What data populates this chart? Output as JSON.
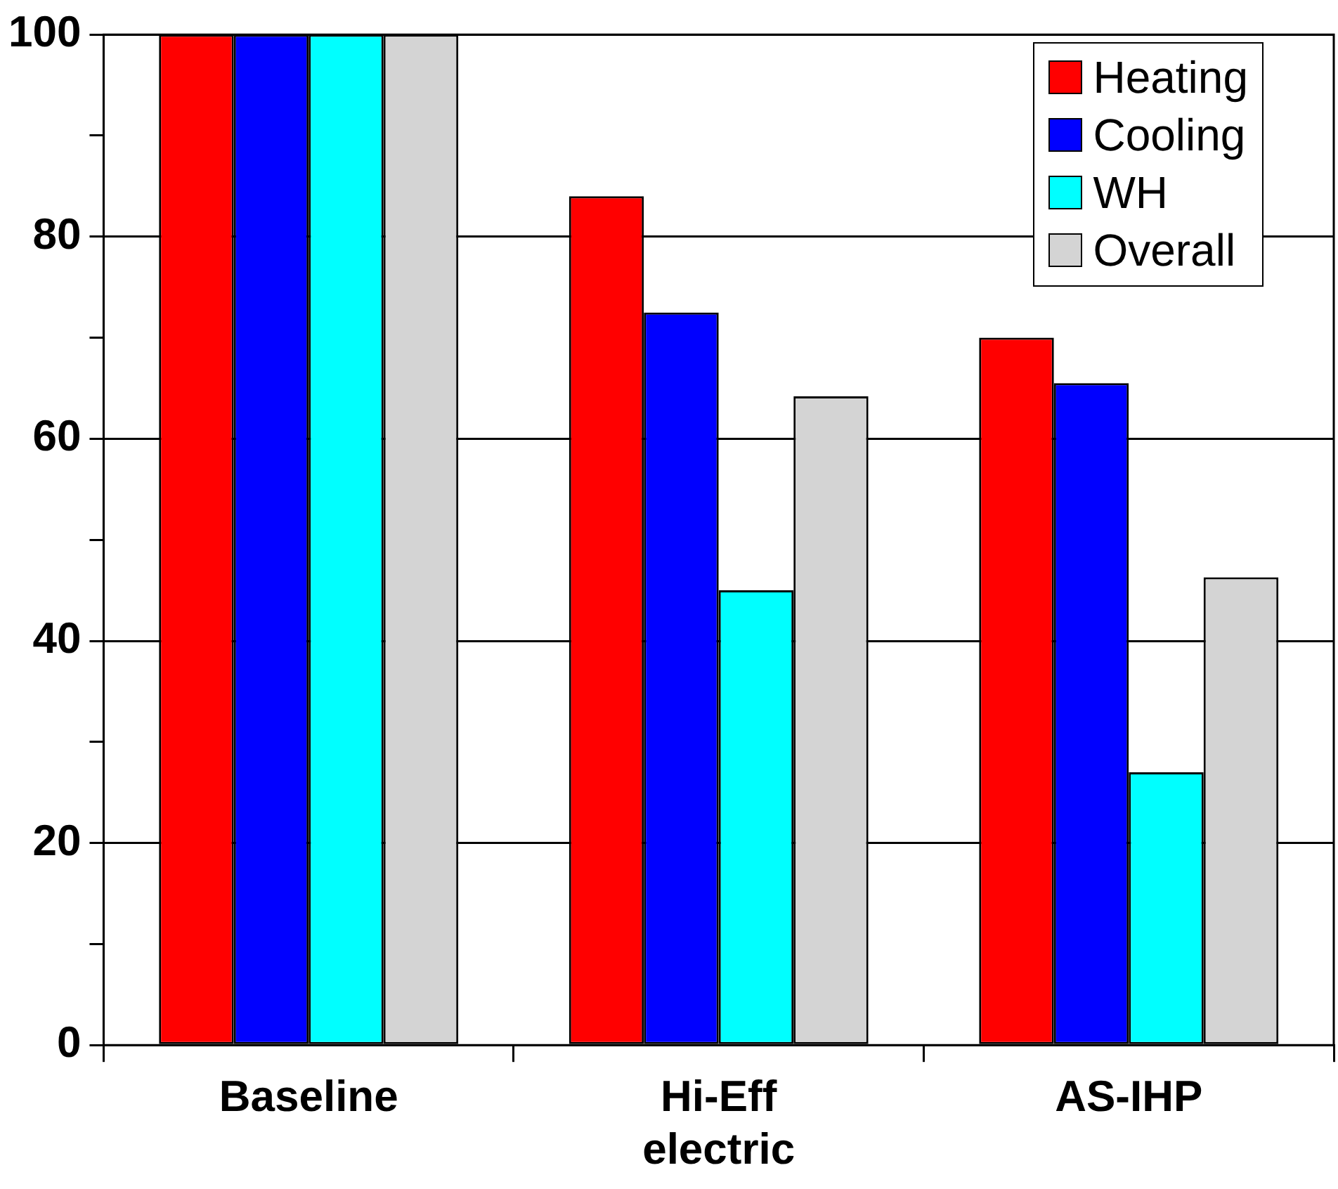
{
  "chart_data": {
    "type": "bar",
    "categories": [
      "Baseline",
      "Hi-Eff electric",
      "AS-IHP"
    ],
    "series": [
      {
        "name": "Heating",
        "color": "#ff0000",
        "values": [
          100,
          84,
          70
        ]
      },
      {
        "name": "Cooling",
        "color": "#0000ff",
        "values": [
          100,
          72.5,
          65.5
        ]
      },
      {
        "name": "WH",
        "color": "#00ffff",
        "values": [
          100,
          45,
          27
        ]
      },
      {
        "name": "Overall",
        "color": "#d4d4d4",
        "values": [
          100,
          64.2,
          46.3
        ]
      }
    ],
    "ylim": [
      0,
      100
    ],
    "yticks": [
      0,
      {
        "value": 10,
        "label": null
      },
      20,
      {
        "value": 30,
        "label": null
      },
      40,
      {
        "value": 50,
        "label": null
      },
      60,
      {
        "value": 70,
        "label": null
      },
      80,
      {
        "value": 90,
        "label": null
      },
      100
    ],
    "grid": "y",
    "legend": "top right"
  }
}
